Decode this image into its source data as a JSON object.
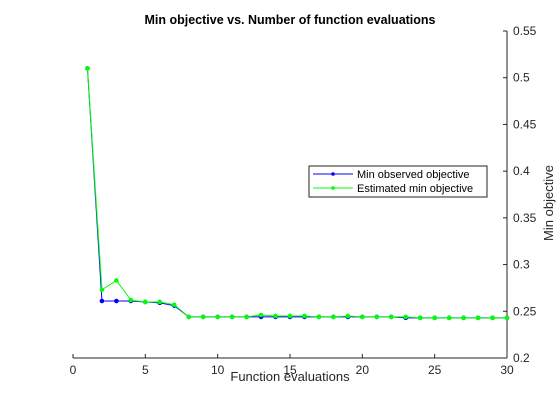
{
  "chart_data": {
    "type": "line",
    "title": "Min objective vs. Number of function evaluations",
    "xlabel": "Function evaluations",
    "ylabel": "Min objective",
    "xlim": [
      0,
      30
    ],
    "ylim": [
      0.2,
      0.55
    ],
    "xticks": [
      "0",
      "5",
      "10",
      "15",
      "20",
      "25",
      "30"
    ],
    "yticks": [
      "0.2",
      "0.25",
      "0.3",
      "0.35",
      "0.4",
      "0.45",
      "0.5",
      "0.55"
    ],
    "y_axis_position": "right",
    "grid": false,
    "legend_position": "right-middle",
    "x": [
      1,
      2,
      3,
      4,
      5,
      6,
      7,
      8,
      9,
      10,
      11,
      12,
      13,
      14,
      15,
      16,
      17,
      18,
      19,
      20,
      21,
      22,
      23,
      24,
      25,
      26,
      27,
      28,
      29,
      30
    ],
    "series": [
      {
        "name": "Min observed objective",
        "color": "#0000ff",
        "values": [
          0.51,
          0.261,
          0.261,
          0.261,
          0.26,
          0.259,
          0.256,
          0.244,
          0.244,
          0.244,
          0.244,
          0.244,
          0.244,
          0.244,
          0.244,
          0.244,
          0.244,
          0.244,
          0.244,
          0.244,
          0.244,
          0.244,
          0.243,
          0.243,
          0.243,
          0.243,
          0.243,
          0.243,
          0.243,
          0.243
        ]
      },
      {
        "name": "Estimated min objective",
        "color": "#00ff00",
        "values": [
          0.51,
          0.273,
          0.283,
          0.262,
          0.26,
          0.26,
          0.257,
          0.244,
          0.244,
          0.244,
          0.244,
          0.244,
          0.246,
          0.245,
          0.245,
          0.245,
          0.244,
          0.244,
          0.245,
          0.244,
          0.244,
          0.244,
          0.244,
          0.243,
          0.243,
          0.243,
          0.243,
          0.243,
          0.243,
          0.243
        ]
      }
    ]
  }
}
